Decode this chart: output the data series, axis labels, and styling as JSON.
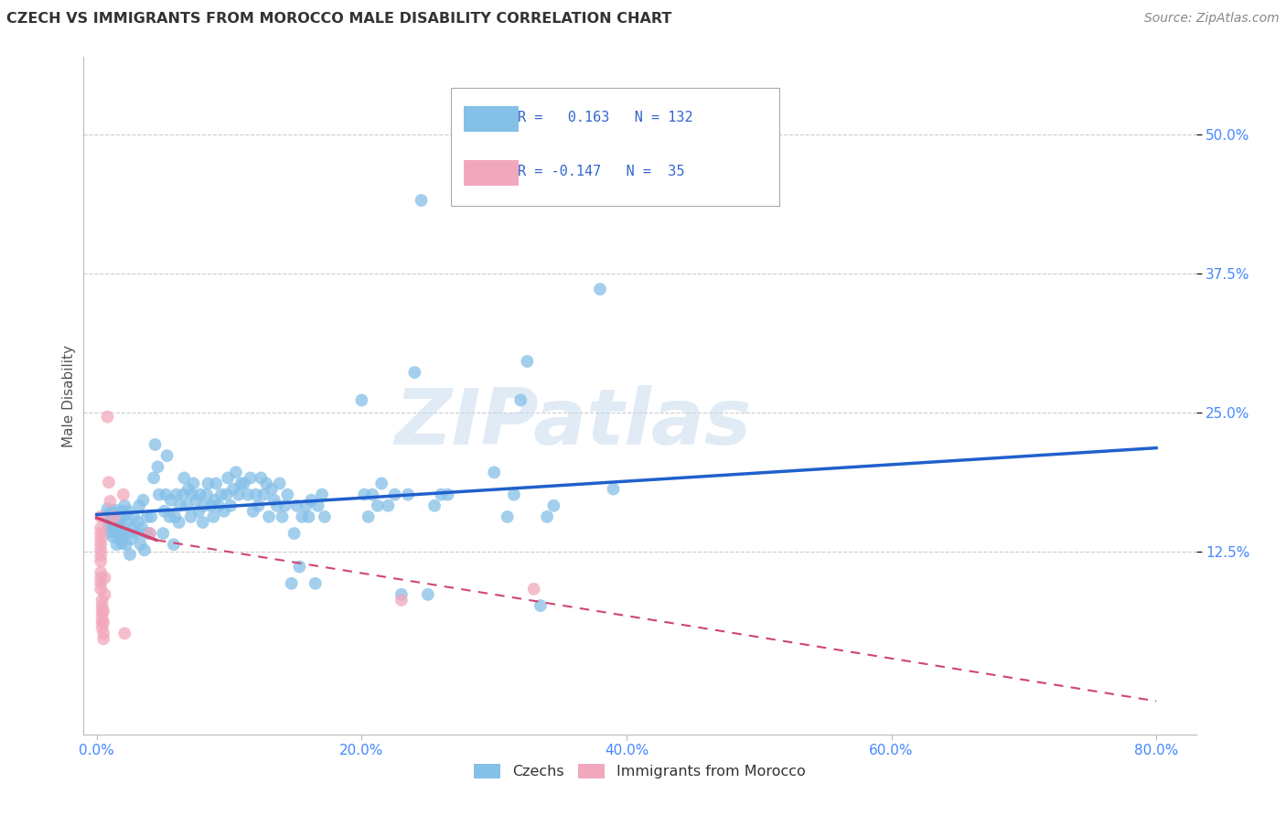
{
  "title": "CZECH VS IMMIGRANTS FROM MOROCCO MALE DISABILITY CORRELATION CHART",
  "source": "Source: ZipAtlas.com",
  "ylabel": "Male Disability",
  "xlabel_ticks": [
    "0.0%",
    "20.0%",
    "40.0%",
    "60.0%",
    "80.0%"
  ],
  "xlabel_vals": [
    0.0,
    0.2,
    0.4,
    0.6,
    0.8
  ],
  "ylabel_ticks": [
    "12.5%",
    "25.0%",
    "37.5%",
    "50.0%"
  ],
  "ylabel_vals": [
    0.125,
    0.25,
    0.375,
    0.5
  ],
  "xlim": [
    -0.01,
    0.83
  ],
  "ylim": [
    -0.04,
    0.57
  ],
  "watermark": "ZIPatlas",
  "legend_labels": [
    "Czechs",
    "Immigrants from Morocco"
  ],
  "blue_R": "0.163",
  "blue_N": "132",
  "pink_R": "-0.147",
  "pink_N": "35",
  "blue_color": "#85C0E8",
  "pink_color": "#F2A8BC",
  "blue_line_color": "#2060CC",
  "pink_line_color": "#D04570",
  "title_color": "#333333",
  "source_color": "#888888",
  "grid_color": "#CCCCCC",
  "tick_color": "#4488FF",
  "legend_text_color": "#3366CC",
  "legend_R_color": "#3366FF",
  "legend_N_color": "#3366FF",
  "blue_scatter": [
    [
      0.007,
      0.157
    ],
    [
      0.008,
      0.163
    ],
    [
      0.009,
      0.148
    ],
    [
      0.01,
      0.142
    ],
    [
      0.01,
      0.152
    ],
    [
      0.011,
      0.156
    ],
    [
      0.011,
      0.161
    ],
    [
      0.012,
      0.138
    ],
    [
      0.013,
      0.146
    ],
    [
      0.013,
      0.151
    ],
    [
      0.014,
      0.156
    ],
    [
      0.014,
      0.162
    ],
    [
      0.015,
      0.131
    ],
    [
      0.015,
      0.141
    ],
    [
      0.016,
      0.146
    ],
    [
      0.016,
      0.151
    ],
    [
      0.017,
      0.156
    ],
    [
      0.017,
      0.136
    ],
    [
      0.018,
      0.141
    ],
    [
      0.018,
      0.151
    ],
    [
      0.019,
      0.161
    ],
    [
      0.019,
      0.132
    ],
    [
      0.02,
      0.141
    ],
    [
      0.02,
      0.156
    ],
    [
      0.021,
      0.166
    ],
    [
      0.022,
      0.131
    ],
    [
      0.023,
      0.141
    ],
    [
      0.023,
      0.151
    ],
    [
      0.024,
      0.161
    ],
    [
      0.025,
      0.122
    ],
    [
      0.026,
      0.136
    ],
    [
      0.027,
      0.146
    ],
    [
      0.028,
      0.156
    ],
    [
      0.03,
      0.141
    ],
    [
      0.031,
      0.151
    ],
    [
      0.032,
      0.166
    ],
    [
      0.033,
      0.131
    ],
    [
      0.034,
      0.146
    ],
    [
      0.035,
      0.171
    ],
    [
      0.036,
      0.126
    ],
    [
      0.037,
      0.141
    ],
    [
      0.038,
      0.156
    ],
    [
      0.04,
      0.141
    ],
    [
      0.041,
      0.156
    ],
    [
      0.043,
      0.191
    ],
    [
      0.044,
      0.221
    ],
    [
      0.046,
      0.201
    ],
    [
      0.047,
      0.176
    ],
    [
      0.05,
      0.141
    ],
    [
      0.051,
      0.161
    ],
    [
      0.052,
      0.176
    ],
    [
      0.053,
      0.211
    ],
    [
      0.055,
      0.156
    ],
    [
      0.056,
      0.171
    ],
    [
      0.058,
      0.131
    ],
    [
      0.059,
      0.156
    ],
    [
      0.06,
      0.176
    ],
    [
      0.062,
      0.151
    ],
    [
      0.063,
      0.166
    ],
    [
      0.065,
      0.176
    ],
    [
      0.066,
      0.191
    ],
    [
      0.068,
      0.166
    ],
    [
      0.069,
      0.181
    ],
    [
      0.071,
      0.156
    ],
    [
      0.072,
      0.176
    ],
    [
      0.073,
      0.186
    ],
    [
      0.075,
      0.171
    ],
    [
      0.077,
      0.161
    ],
    [
      0.078,
      0.176
    ],
    [
      0.08,
      0.151
    ],
    [
      0.081,
      0.166
    ],
    [
      0.083,
      0.176
    ],
    [
      0.084,
      0.186
    ],
    [
      0.086,
      0.166
    ],
    [
      0.088,
      0.156
    ],
    [
      0.089,
      0.171
    ],
    [
      0.09,
      0.186
    ],
    [
      0.092,
      0.166
    ],
    [
      0.094,
      0.176
    ],
    [
      0.096,
      0.161
    ],
    [
      0.098,
      0.176
    ],
    [
      0.099,
      0.191
    ],
    [
      0.101,
      0.166
    ],
    [
      0.103,
      0.181
    ],
    [
      0.105,
      0.196
    ],
    [
      0.107,
      0.176
    ],
    [
      0.109,
      0.186
    ],
    [
      0.111,
      0.186
    ],
    [
      0.114,
      0.176
    ],
    [
      0.116,
      0.191
    ],
    [
      0.118,
      0.161
    ],
    [
      0.12,
      0.176
    ],
    [
      0.122,
      0.166
    ],
    [
      0.124,
      0.191
    ],
    [
      0.126,
      0.176
    ],
    [
      0.128,
      0.186
    ],
    [
      0.13,
      0.156
    ],
    [
      0.132,
      0.181
    ],
    [
      0.134,
      0.171
    ],
    [
      0.136,
      0.166
    ],
    [
      0.138,
      0.186
    ],
    [
      0.14,
      0.156
    ],
    [
      0.142,
      0.166
    ],
    [
      0.144,
      0.176
    ],
    [
      0.147,
      0.096
    ],
    [
      0.149,
      0.141
    ],
    [
      0.151,
      0.166
    ],
    [
      0.153,
      0.111
    ],
    [
      0.155,
      0.156
    ],
    [
      0.158,
      0.166
    ],
    [
      0.16,
      0.156
    ],
    [
      0.162,
      0.171
    ],
    [
      0.165,
      0.096
    ],
    [
      0.167,
      0.166
    ],
    [
      0.17,
      0.176
    ],
    [
      0.172,
      0.156
    ],
    [
      0.2,
      0.261
    ],
    [
      0.202,
      0.176
    ],
    [
      0.205,
      0.156
    ],
    [
      0.208,
      0.176
    ],
    [
      0.212,
      0.166
    ],
    [
      0.215,
      0.186
    ],
    [
      0.22,
      0.166
    ],
    [
      0.225,
      0.176
    ],
    [
      0.23,
      0.086
    ],
    [
      0.235,
      0.176
    ],
    [
      0.24,
      0.286
    ],
    [
      0.245,
      0.441
    ],
    [
      0.25,
      0.086
    ],
    [
      0.255,
      0.166
    ],
    [
      0.26,
      0.176
    ],
    [
      0.265,
      0.176
    ],
    [
      0.3,
      0.196
    ],
    [
      0.31,
      0.156
    ],
    [
      0.315,
      0.176
    ],
    [
      0.32,
      0.261
    ],
    [
      0.325,
      0.296
    ],
    [
      0.335,
      0.076
    ],
    [
      0.34,
      0.156
    ],
    [
      0.345,
      0.166
    ],
    [
      0.38,
      0.361
    ],
    [
      0.39,
      0.181
    ]
  ],
  "pink_scatter": [
    [
      0.003,
      0.156
    ],
    [
      0.003,
      0.146
    ],
    [
      0.003,
      0.141
    ],
    [
      0.003,
      0.136
    ],
    [
      0.003,
      0.131
    ],
    [
      0.003,
      0.126
    ],
    [
      0.003,
      0.121
    ],
    [
      0.003,
      0.116
    ],
    [
      0.003,
      0.106
    ],
    [
      0.003,
      0.101
    ],
    [
      0.003,
      0.096
    ],
    [
      0.003,
      0.091
    ],
    [
      0.004,
      0.081
    ],
    [
      0.004,
      0.076
    ],
    [
      0.004,
      0.071
    ],
    [
      0.004,
      0.066
    ],
    [
      0.004,
      0.061
    ],
    [
      0.004,
      0.056
    ],
    [
      0.005,
      0.051
    ],
    [
      0.005,
      0.046
    ],
    [
      0.005,
      0.061
    ],
    [
      0.005,
      0.071
    ],
    [
      0.006,
      0.086
    ],
    [
      0.006,
      0.101
    ],
    [
      0.008,
      0.246
    ],
    [
      0.009,
      0.187
    ],
    [
      0.01,
      0.17
    ],
    [
      0.013,
      0.156
    ],
    [
      0.02,
      0.176
    ],
    [
      0.021,
      0.051
    ],
    [
      0.04,
      0.141
    ],
    [
      0.23,
      0.081
    ],
    [
      0.33,
      0.091
    ]
  ],
  "blue_trend": [
    0.0,
    0.8,
    0.158,
    0.218
  ],
  "pink_solid_trend": [
    0.0,
    0.045,
    0.155,
    0.135
  ],
  "pink_dashed_trend": [
    0.045,
    0.8,
    0.135,
    -0.01
  ]
}
